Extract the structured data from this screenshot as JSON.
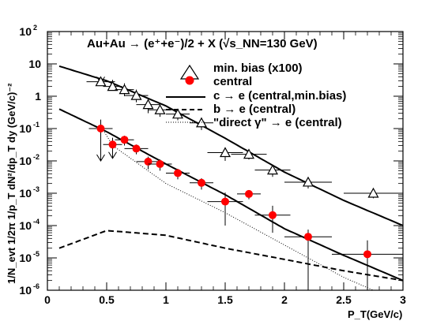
{
  "chart_data": {
    "type": "scatter",
    "title": "Au+Au → (e⁺+e⁻)/2 + X (√s_NN=130 GeV)",
    "xlabel": "P_T(GeV/c)",
    "ylabel": "1/N_evt 1/2π 1/p_T dN²/dp_T dy (GeV/c)⁻²",
    "xlim": [
      0,
      3
    ],
    "ylim_log10": [
      -6,
      2
    ],
    "x_scale": "linear",
    "y_scale": "log",
    "x_ticks": [
      "0",
      "0.5",
      "1",
      "1.5",
      "2",
      "2.5",
      "3"
    ],
    "y_ticks": [
      {
        "base": "10",
        "exp": "2"
      },
      {
        "base": "10",
        "exp": ""
      },
      {
        "base": "1",
        "exp": ""
      },
      {
        "base": "10",
        "exp": "-1"
      },
      {
        "base": "10",
        "exp": "-2"
      },
      {
        "base": "10",
        "exp": "-3"
      },
      {
        "base": "10",
        "exp": "-4"
      },
      {
        "base": "10",
        "exp": "-5"
      },
      {
        "base": "10",
        "exp": "-6"
      }
    ],
    "legend_position": "top-right",
    "series": [
      {
        "name": "min. bias (x100)",
        "marker": "open-triangle",
        "color": "#000000",
        "points": [
          {
            "x": 0.45,
            "y": 2.8,
            "xerr": 0.12,
            "yerr_lo": 0.25,
            "yerr_hi": 0.6,
            "upper_limit": true
          },
          {
            "x": 0.55,
            "y": 2.0,
            "xerr": 0.08,
            "yerr_lo": 0.5,
            "yerr_hi": 1.2
          },
          {
            "x": 0.65,
            "y": 1.6,
            "xerr": 0.08,
            "yerr_lo": 0.6,
            "yerr_hi": 0.9
          },
          {
            "x": 0.75,
            "y": 1.05,
            "xerr": 0.1,
            "yerr_lo": 0.4,
            "yerr_hi": 0.55
          },
          {
            "x": 0.85,
            "y": 0.55,
            "xerr": 0.1,
            "yerr_lo": 0.25,
            "yerr_hi": 0.25
          },
          {
            "x": 0.95,
            "y": 0.38,
            "xerr": 0.1,
            "yerr_lo": 0.15,
            "yerr_hi": 0.15
          },
          {
            "x": 1.1,
            "y": 0.28,
            "xerr": 0.1,
            "yerr_lo": 0.1,
            "yerr_hi": 0.1
          },
          {
            "x": 1.3,
            "y": 0.15,
            "xerr": 0.1,
            "yerr_lo": 0.06,
            "yerr_hi": 0.06
          },
          {
            "x": 1.5,
            "y": 0.018,
            "xerr": 0.15,
            "yerr_lo": 0.008,
            "yerr_hi": 0.008
          },
          {
            "x": 1.7,
            "y": 0.016,
            "xerr": 0.15,
            "yerr_lo": 0.005,
            "yerr_hi": 0.005
          },
          {
            "x": 1.9,
            "y": 0.0052,
            "xerr": 0.15,
            "yerr_lo": 0.002,
            "yerr_hi": 0.002
          },
          {
            "x": 2.2,
            "y": 0.0022,
            "xerr": 0.2,
            "yerr_lo": 0.0008,
            "yerr_hi": 0.0008
          },
          {
            "x": 2.75,
            "y": 0.001,
            "xerr": 0.25,
            "yerr_lo": 0.0003,
            "yerr_hi": 0.0003
          }
        ]
      },
      {
        "name": "central",
        "marker": "filled-circle",
        "color": "#ff0000",
        "points": [
          {
            "x": 0.45,
            "y": 0.1,
            "xerr": 0.1,
            "yerr_lo": 0.09,
            "yerr_hi": 0.09,
            "upper_limit": true
          },
          {
            "x": 0.55,
            "y": 0.032,
            "xerr": 0.08,
            "yerr_lo": 0.02,
            "yerr_hi": 0.02,
            "upper_limit": true
          },
          {
            "x": 0.65,
            "y": 0.045,
            "xerr": 0.08,
            "yerr_lo": 0.015,
            "yerr_hi": 0.015
          },
          {
            "x": 0.75,
            "y": 0.024,
            "xerr": 0.1,
            "yerr_lo": 0.008,
            "yerr_hi": 0.008
          },
          {
            "x": 0.85,
            "y": 0.0095,
            "xerr": 0.1,
            "yerr_lo": 0.004,
            "yerr_hi": 0.004
          },
          {
            "x": 0.95,
            "y": 0.008,
            "xerr": 0.1,
            "yerr_lo": 0.003,
            "yerr_hi": 0.003
          },
          {
            "x": 1.1,
            "y": 0.0042,
            "xerr": 0.1,
            "yerr_lo": 0.0015,
            "yerr_hi": 0.0015
          },
          {
            "x": 1.3,
            "y": 0.0021,
            "xerr": 0.1,
            "yerr_lo": 0.0008,
            "yerr_hi": 0.0008
          },
          {
            "x": 1.5,
            "y": 0.00055,
            "xerr": 0.15,
            "yerr_lo": 0.00045,
            "yerr_hi": 0.0005
          },
          {
            "x": 1.7,
            "y": 0.00095,
            "xerr": 0.1,
            "yerr_lo": 0.0003,
            "yerr_hi": 0.0003
          },
          {
            "x": 1.9,
            "y": 0.00021,
            "xerr": 0.15,
            "yerr_lo": 0.00015,
            "yerr_hi": 0.0002
          },
          {
            "x": 2.2,
            "y": 4.5e-05,
            "xerr": 0.2,
            "yerr_lo": 4.4e-05,
            "yerr_hi": 3e-05
          },
          {
            "x": 2.7,
            "y": 1.3e-05,
            "xerr": 0.3,
            "yerr_lo": 1.29e-05,
            "yerr_hi": 2.2e-05
          }
        ]
      },
      {
        "name": "c → e (central,min.bias)",
        "line_style": "solid",
        "curves": [
          {
            "x": [
              0.1,
              0.5,
              1.0,
              1.5,
              2.0,
              2.5,
              3.0
            ],
            "y": [
              8.5,
              3.0,
              0.5,
              0.05,
              0.0045,
              0.0006,
              0.0001
            ]
          },
          {
            "x": [
              0.1,
              0.5,
              1.0,
              1.5,
              2.0,
              2.5,
              3.0
            ],
            "y": [
              0.4,
              0.08,
              0.008,
              0.0009,
              8e-05,
              1.2e-05,
              2e-06
            ]
          }
        ]
      },
      {
        "name": "b → e (central)",
        "line_style": "dashed",
        "curves": [
          {
            "x": [
              0.1,
              0.5,
              1.0,
              1.5,
              2.0,
              2.5,
              3.0
            ],
            "y": [
              2e-05,
              7e-05,
              5e-05,
              2e-05,
              9e-06,
              4e-06,
              2e-06
            ]
          }
        ]
      },
      {
        "name": "\"direct γ\" → e (central)",
        "line_style": "dotted",
        "curves": [
          {
            "x": [
              0.45,
              0.55,
              1.0,
              1.5,
              2.0,
              2.5,
              2.75
            ],
            "y": [
              0.12,
              0.03,
              0.002,
              0.00025,
              2.5e-05,
              2.5e-06,
              1e-06
            ]
          }
        ]
      }
    ]
  }
}
